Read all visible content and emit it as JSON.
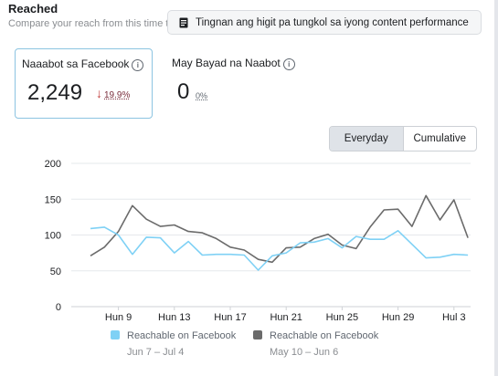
{
  "header": {
    "title": "Reached",
    "subtitle": "Compare your reach from this time to the previous one.",
    "more_button_label": "Tingnan ang higit pa tungkol sa iyong content performance"
  },
  "metrics": {
    "facebook": {
      "label": "Naaabot sa Facebook",
      "value": "2,249",
      "change": "19.9%"
    },
    "paid": {
      "label": "May Bayad na Naabot",
      "value": "0",
      "change": "0%"
    }
  },
  "toggle": {
    "everyday": "Everyday",
    "cumulative": "Cumulative",
    "selected": "Everyday"
  },
  "chart_data": {
    "type": "line",
    "y_ticks": [
      "200",
      "150",
      "100",
      "50",
      "0"
    ],
    "ylim": [
      0,
      200
    ],
    "x_ticks": [
      "Hun 9",
      "Hun 13",
      "Hun 17",
      "Hun 21",
      "Hun 25",
      "Hun 29",
      "Hul 3"
    ],
    "grid": true,
    "legend_position": "bottom",
    "series": [
      {
        "name": "Reachable on Facebook",
        "date_range": "Jun 7 – Jul 4",
        "color": "#7fd1f5",
        "values": [
          109,
          111,
          100,
          73,
          97,
          96,
          75,
          91,
          72,
          73,
          73,
          72,
          51,
          71,
          75,
          89,
          90,
          95,
          82,
          98,
          94,
          94,
          106,
          87,
          68,
          69,
          73,
          72
        ]
      },
      {
        "name": "Reachable on Facebook",
        "date_range": "May 10 – Jun 6",
        "color": "#6b6b6b",
        "values": [
          71,
          83,
          105,
          141,
          122,
          112,
          114,
          105,
          103,
          95,
          83,
          79,
          66,
          62,
          82,
          83,
          95,
          101,
          86,
          81,
          111,
          135,
          136,
          112,
          155,
          121,
          149,
          96
        ]
      }
    ]
  }
}
